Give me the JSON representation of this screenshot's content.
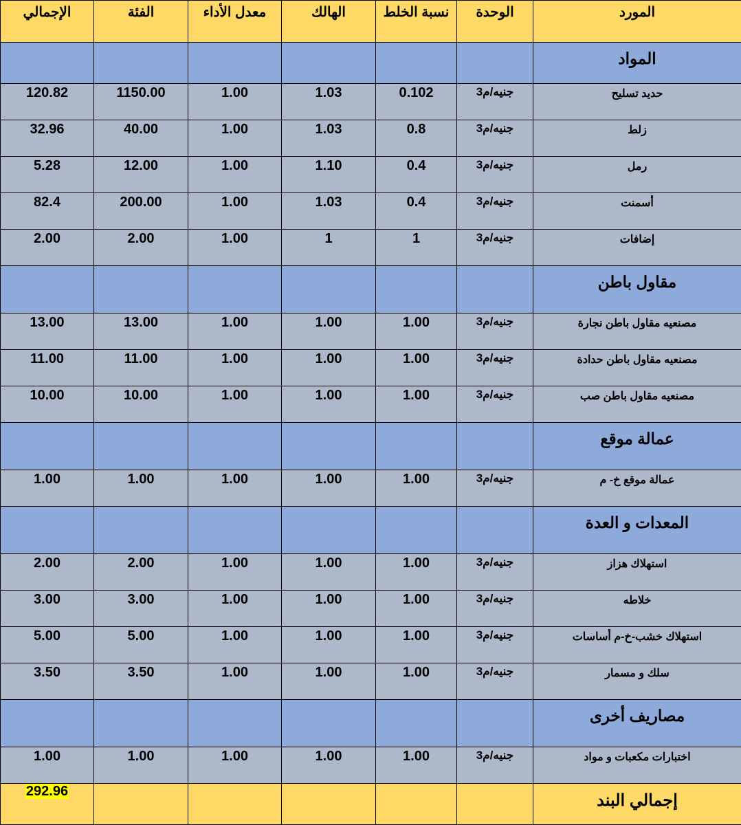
{
  "colors": {
    "header": "#FFD966",
    "section": "#8EAADB",
    "row": "#ADB9CA",
    "highlight": "#FFFF00"
  },
  "headers": [
    "المورد",
    "الوحدة",
    "نسبة الخلط",
    "الهالك",
    "معدل الأداء",
    "الفئة",
    "الإجمالي"
  ],
  "rows": [
    {
      "type": "section",
      "label": "المواد"
    },
    {
      "type": "item",
      "label": "حديد تسليح",
      "unit": "جنيه/م3",
      "mix": "0.102",
      "waste": "1.03",
      "rate": "1.00",
      "price": "1150.00",
      "total": "120.82"
    },
    {
      "type": "item",
      "label": "زلط",
      "unit": "جنيه/م3",
      "mix": "0.8",
      "waste": "1.03",
      "rate": "1.00",
      "price": "40.00",
      "total": "32.96"
    },
    {
      "type": "item",
      "label": "رمل",
      "unit": "جنيه/م3",
      "mix": "0.4",
      "waste": "1.10",
      "rate": "1.00",
      "price": "12.00",
      "total": "5.28"
    },
    {
      "type": "item",
      "label": "أسمنت",
      "unit": "جنيه/م3",
      "mix": "0.4",
      "waste": "1.03",
      "rate": "1.00",
      "price": "200.00",
      "total": "82.4"
    },
    {
      "type": "item",
      "label": "إضافات",
      "unit": "جنيه/م3",
      "mix": "1",
      "waste": "1",
      "rate": "1.00",
      "price": "2.00",
      "total": "2.00"
    },
    {
      "type": "section",
      "label": "مقاول باطن"
    },
    {
      "type": "item",
      "label": "مصنعيه مقاول باطن نجارة",
      "unit": "جنيه/م3",
      "mix": "1.00",
      "waste": "1.00",
      "rate": "1.00",
      "price": "13.00",
      "total": "13.00"
    },
    {
      "type": "item",
      "label": "مصنعيه مقاول باطن حدادة",
      "unit": "جنيه/م3",
      "mix": "1.00",
      "waste": "1.00",
      "rate": "1.00",
      "price": "11.00",
      "total": "11.00"
    },
    {
      "type": "item",
      "label": "مصنعيه مقاول باطن صب",
      "unit": "جنيه/م3",
      "mix": "1.00",
      "waste": "1.00",
      "rate": "1.00",
      "price": "10.00",
      "total": "10.00"
    },
    {
      "type": "section",
      "label": "عمالة موقع"
    },
    {
      "type": "item",
      "label": "عمالة موقع خ- م",
      "unit": "جنيه/م3",
      "mix": "1.00",
      "waste": "1.00",
      "rate": "1.00",
      "price": "1.00",
      "total": "1.00"
    },
    {
      "type": "section",
      "label": "المعدات و العدة"
    },
    {
      "type": "item",
      "label": "استهلاك هزاز",
      "unit": "جنيه/م3",
      "mix": "1.00",
      "waste": "1.00",
      "rate": "1.00",
      "price": "2.00",
      "total": "2.00"
    },
    {
      "type": "item",
      "label": "خلاطه",
      "unit": "جنيه/م3",
      "mix": "1.00",
      "waste": "1.00",
      "rate": "1.00",
      "price": "3.00",
      "total": "3.00"
    },
    {
      "type": "item",
      "label": "استهلاك خشب-خ-م أساسات",
      "unit": "جنيه/م3",
      "mix": "1.00",
      "waste": "1.00",
      "rate": "1.00",
      "price": "5.00",
      "total": "5.00"
    },
    {
      "type": "item",
      "label": "سلك و مسمار",
      "unit": "جنيه/م3",
      "mix": "1.00",
      "waste": "1.00",
      "rate": "1.00",
      "price": "3.50",
      "total": "3.50"
    },
    {
      "type": "section",
      "label": "مصاريف أخرى"
    },
    {
      "type": "item",
      "label": "اختبارات مكعبات و مواد",
      "unit": "جنيه/م3",
      "mix": "1.00",
      "waste": "1.00",
      "rate": "1.00",
      "price": "1.00",
      "total": "1.00"
    }
  ],
  "grand_total": {
    "label": "إجمالي البند",
    "value": "292.96"
  }
}
